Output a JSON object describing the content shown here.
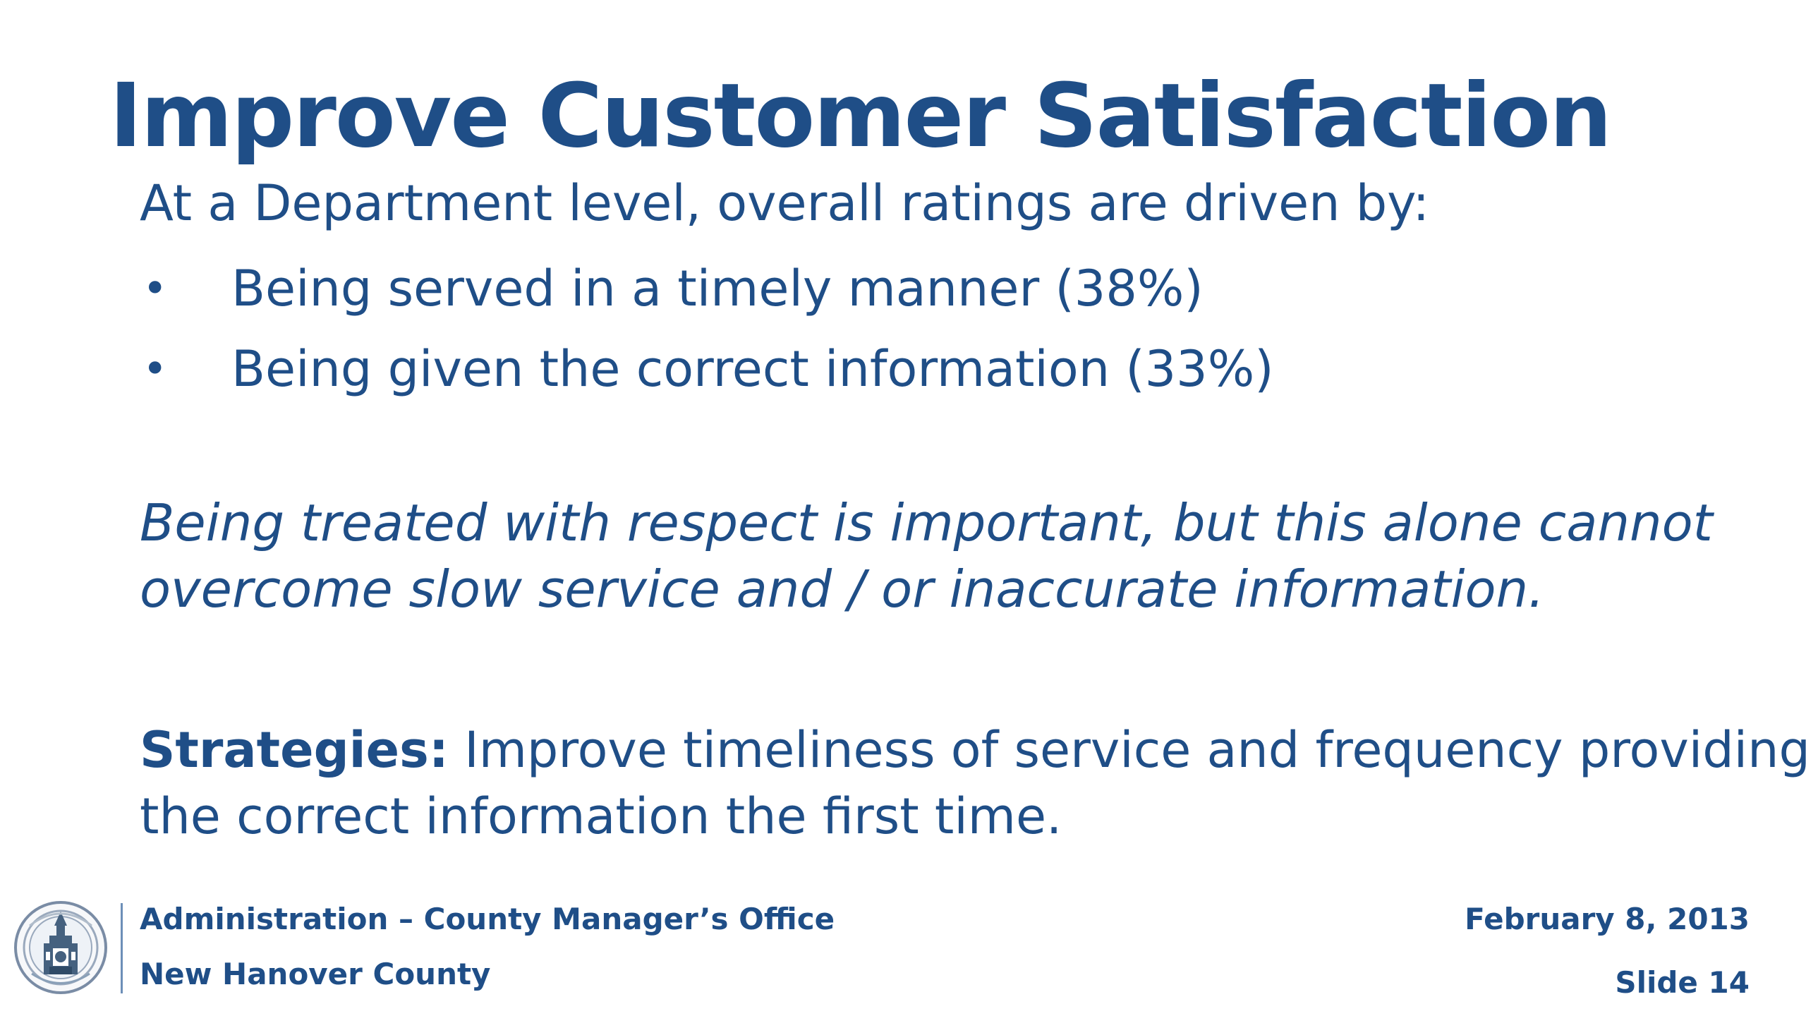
{
  "slide": {
    "title": "Improve Customer Satisfaction",
    "intro": "At a Department level, overall ratings are driven by:",
    "bullets": [
      "Being served in a timely manner (38%)",
      "Being given the correct information (33%)"
    ],
    "bullet_symbol": "•",
    "emphasis_lines": [
      "Being treated with respect is important, but this alone cannot",
      "overcome slow service and / or inaccurate information."
    ],
    "strategies": {
      "label": "Strategies:",
      "line1": " Improve timeliness of service and frequency providing",
      "line2": "the correct information the first time."
    }
  },
  "footer": {
    "department": "Administration – County Manager’s Office",
    "county": "New Hanover County",
    "date": "February 8, 2013",
    "slide_number": "Slide 14"
  },
  "colors": {
    "text": "#1f4e87",
    "background": "#ffffff",
    "divider": "#6d8fb8"
  },
  "icons": {
    "seal": "county-seal-icon"
  }
}
